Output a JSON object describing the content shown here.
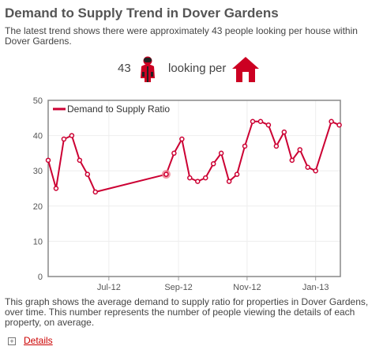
{
  "header": {
    "title": "Demand to Supply Trend in Dover Gardens",
    "subtitle": "The latest trend shows there were approximately 43 people looking per house within Dover Gardens."
  },
  "summary": {
    "count": "43",
    "looking_text": "looking per",
    "person_icon": "person-icon",
    "house_icon": "house-icon",
    "accent_color": "#cc0022"
  },
  "chart_data": {
    "type": "line",
    "title": "",
    "xlabel": "",
    "ylabel": "",
    "ylim": [
      0,
      50
    ],
    "yticks": [
      0,
      10,
      20,
      30,
      40,
      50
    ],
    "xlim": [
      "2012-05-08",
      "2013-01-23"
    ],
    "xticks": [
      {
        "date": "2012-07-01",
        "label": "Jul-12"
      },
      {
        "date": "2012-09-01",
        "label": "Sep-12"
      },
      {
        "date": "2012-11-01",
        "label": "Nov-12"
      },
      {
        "date": "2013-01-01",
        "label": "Jan-13"
      }
    ],
    "legend": {
      "position": "top-left"
    },
    "grid": true,
    "series": [
      {
        "name": "Demand to Supply Ratio",
        "color": "#cc0033",
        "points": [
          {
            "x": "2012-05-08",
            "y": 33
          },
          {
            "x": "2012-05-15",
            "y": 25
          },
          {
            "x": "2012-05-22",
            "y": 39
          },
          {
            "x": "2012-05-29",
            "y": 40
          },
          {
            "x": "2012-06-05",
            "y": 33
          },
          {
            "x": "2012-06-12",
            "y": 29
          },
          {
            "x": "2012-06-19",
            "y": 24
          },
          {
            "x": "2012-08-21",
            "y": 29
          },
          {
            "x": "2012-08-28",
            "y": 35
          },
          {
            "x": "2012-09-04",
            "y": 39
          },
          {
            "x": "2012-09-11",
            "y": 28
          },
          {
            "x": "2012-09-18",
            "y": 27
          },
          {
            "x": "2012-09-25",
            "y": 28
          },
          {
            "x": "2012-10-02",
            "y": 32
          },
          {
            "x": "2012-10-09",
            "y": 35
          },
          {
            "x": "2012-10-16",
            "y": 27
          },
          {
            "x": "2012-10-23",
            "y": 29
          },
          {
            "x": "2012-10-30",
            "y": 37
          },
          {
            "x": "2012-11-06",
            "y": 44
          },
          {
            "x": "2012-11-13",
            "y": 44
          },
          {
            "x": "2012-11-20",
            "y": 43
          },
          {
            "x": "2012-11-27",
            "y": 37
          },
          {
            "x": "2012-12-04",
            "y": 41
          },
          {
            "x": "2012-12-11",
            "y": 33
          },
          {
            "x": "2012-12-18",
            "y": 36
          },
          {
            "x": "2012-12-25",
            "y": 31
          },
          {
            "x": "2013-01-01",
            "y": 30
          },
          {
            "x": "2013-01-15",
            "y": 44
          },
          {
            "x": "2013-01-22",
            "y": 43
          }
        ],
        "highlighted_x": "2012-08-21"
      }
    ]
  },
  "description": "This graph shows the average demand to supply ratio for properties in Dover Gardens, over time. This number represents the number of people viewing the details of each property, on average.",
  "details": {
    "toggle_symbol": "+",
    "label": "Details"
  }
}
